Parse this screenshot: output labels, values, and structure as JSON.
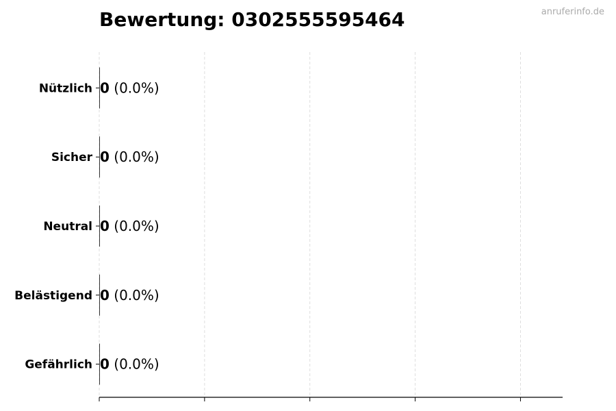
{
  "chart_data": {
    "type": "bar",
    "orientation": "horizontal",
    "title": "Bewertung: 0302555595464",
    "categories": [
      "Nützlich",
      "Sicher",
      "Neutral",
      "Belästigend",
      "Gefährlich"
    ],
    "values": [
      0,
      0,
      0,
      0,
      0
    ],
    "labels": [
      "(0.0%)",
      "(0.0%)",
      "(0.0%)",
      "(0.0%)",
      "(0.0%)"
    ],
    "xlabel": "",
    "ylabel": "",
    "xlim": [
      0,
      4.4
    ],
    "grid": "vertical dashed",
    "x_tick_labels": false
  },
  "watermark": "anruferinfo.de",
  "colors": {
    "grid": "#dddddd",
    "axis": "#000000",
    "watermark": "#aaaaaa"
  }
}
